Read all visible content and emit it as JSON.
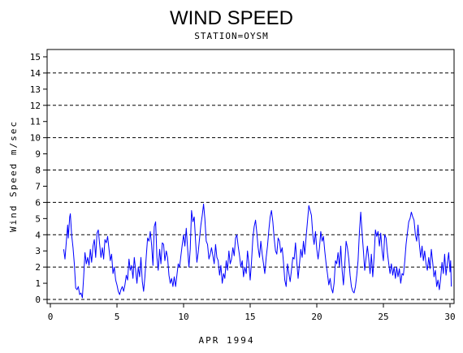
{
  "chart_data": {
    "type": "line",
    "title": "WIND SPEED",
    "subtitle": "STATION=OYSM",
    "xlabel": "APR 1994",
    "ylabel": "Wind Speed m/sec",
    "xlim": [
      0,
      30.3
    ],
    "ylim": [
      0,
      15.5
    ],
    "x_ticks": [
      0,
      5,
      10,
      15,
      20,
      25,
      30
    ],
    "y_ticks": [
      0,
      1,
      2,
      3,
      4,
      5,
      6,
      7,
      8,
      9,
      10,
      11,
      12,
      13,
      14,
      15
    ],
    "grid_lines_y": [
      0,
      2,
      4,
      6,
      8,
      10,
      12,
      14
    ],
    "grid_style": "dashed",
    "series_color": "#0000ff",
    "series": [
      {
        "values": [
          [
            1.0,
            3.1
          ],
          [
            1.1,
            2.5
          ],
          [
            1.2,
            3.6
          ],
          [
            1.3,
            4.6
          ],
          [
            1.35,
            3.8
          ],
          [
            1.45,
            5.1
          ],
          [
            1.5,
            5.3
          ],
          [
            1.6,
            4.0
          ],
          [
            1.7,
            3.2
          ],
          [
            1.8,
            2.2
          ],
          [
            1.9,
            0.7
          ],
          [
            2.0,
            0.6
          ],
          [
            2.1,
            0.8
          ],
          [
            2.2,
            0.3
          ],
          [
            2.3,
            0.4
          ],
          [
            2.4,
            0.1
          ],
          [
            2.5,
            1.4
          ],
          [
            2.6,
            2.9
          ],
          [
            2.7,
            2.2
          ],
          [
            2.8,
            2.6
          ],
          [
            2.9,
            2.1
          ],
          [
            3.0,
            3.1
          ],
          [
            3.1,
            2.3
          ],
          [
            3.2,
            3.3
          ],
          [
            3.3,
            3.7
          ],
          [
            3.4,
            2.6
          ],
          [
            3.5,
            4.1
          ],
          [
            3.6,
            4.3
          ],
          [
            3.7,
            3.4
          ],
          [
            3.8,
            2.6
          ],
          [
            3.9,
            3.2
          ],
          [
            4.0,
            2.5
          ],
          [
            4.1,
            3.7
          ],
          [
            4.2,
            3.5
          ],
          [
            4.3,
            3.9
          ],
          [
            4.4,
            3.1
          ],
          [
            4.5,
            2.4
          ],
          [
            4.6,
            2.8
          ],
          [
            4.7,
            1.6
          ],
          [
            4.8,
            2.0
          ],
          [
            4.9,
            1.2
          ],
          [
            5.0,
            0.9
          ],
          [
            5.1,
            0.5
          ],
          [
            5.2,
            0.3
          ],
          [
            5.3,
            0.6
          ],
          [
            5.4,
            0.8
          ],
          [
            5.5,
            0.5
          ],
          [
            5.6,
            0.9
          ],
          [
            5.7,
            1.5
          ],
          [
            5.8,
            1.2
          ],
          [
            5.9,
            2.5
          ],
          [
            6.0,
            1.8
          ],
          [
            6.1,
            2.1
          ],
          [
            6.2,
            1.3
          ],
          [
            6.3,
            2.6
          ],
          [
            6.4,
            1.8
          ],
          [
            6.5,
            1.0
          ],
          [
            6.6,
            2.0
          ],
          [
            6.7,
            1.4
          ],
          [
            6.8,
            2.6
          ],
          [
            6.9,
            1.1
          ],
          [
            7.0,
            0.5
          ],
          [
            7.1,
            1.4
          ],
          [
            7.2,
            2.7
          ],
          [
            7.3,
            3.8
          ],
          [
            7.4,
            3.6
          ],
          [
            7.5,
            4.2
          ],
          [
            7.6,
            3.4
          ],
          [
            7.7,
            2.1
          ],
          [
            7.8,
            4.5
          ],
          [
            7.9,
            4.8
          ],
          [
            8.0,
            2.6
          ],
          [
            8.1,
            1.8
          ],
          [
            8.2,
            3.1
          ],
          [
            8.3,
            2.2
          ],
          [
            8.4,
            3.5
          ],
          [
            8.5,
            3.4
          ],
          [
            8.6,
            2.4
          ],
          [
            8.7,
            3.0
          ],
          [
            8.8,
            2.6
          ],
          [
            8.9,
            1.5
          ],
          [
            9.0,
            1.0
          ],
          [
            9.1,
            1.3
          ],
          [
            9.2,
            0.8
          ],
          [
            9.3,
            1.4
          ],
          [
            9.4,
            0.8
          ],
          [
            9.5,
            1.5
          ],
          [
            9.6,
            2.2
          ],
          [
            9.7,
            2.0
          ],
          [
            9.8,
            2.7
          ],
          [
            9.9,
            3.4
          ],
          [
            10.0,
            4.0
          ],
          [
            10.1,
            3.3
          ],
          [
            10.2,
            4.4
          ],
          [
            10.3,
            3.2
          ],
          [
            10.4,
            2.0
          ],
          [
            10.5,
            3.1
          ],
          [
            10.6,
            5.5
          ],
          [
            10.7,
            4.8
          ],
          [
            10.8,
            5.1
          ],
          [
            10.9,
            3.6
          ],
          [
            11.0,
            2.3
          ],
          [
            11.1,
            2.9
          ],
          [
            11.2,
            3.8
          ],
          [
            11.3,
            4.6
          ],
          [
            11.4,
            5.2
          ],
          [
            11.5,
            5.9
          ],
          [
            11.6,
            5.0
          ],
          [
            11.7,
            3.6
          ],
          [
            11.8,
            3.4
          ],
          [
            11.9,
            2.5
          ],
          [
            12.0,
            2.8
          ],
          [
            12.1,
            3.2
          ],
          [
            12.2,
            2.7
          ],
          [
            12.3,
            2.2
          ],
          [
            12.4,
            3.4
          ],
          [
            12.5,
            2.6
          ],
          [
            12.6,
            2.4
          ],
          [
            12.7,
            1.5
          ],
          [
            12.8,
            2.1
          ],
          [
            12.9,
            1.0
          ],
          [
            13.0,
            1.6
          ],
          [
            13.1,
            1.3
          ],
          [
            13.2,
            2.4
          ],
          [
            13.3,
            1.8
          ],
          [
            13.4,
            3.0
          ],
          [
            13.5,
            2.2
          ],
          [
            13.6,
            2.5
          ],
          [
            13.7,
            3.2
          ],
          [
            13.8,
            2.7
          ],
          [
            13.9,
            3.8
          ],
          [
            14.0,
            4.0
          ],
          [
            14.1,
            3.3
          ],
          [
            14.2,
            2.7
          ],
          [
            14.3,
            2.0
          ],
          [
            14.4,
            2.4
          ],
          [
            14.5,
            1.4
          ],
          [
            14.6,
            2.0
          ],
          [
            14.7,
            1.6
          ],
          [
            14.8,
            3.0
          ],
          [
            14.9,
            2.2
          ],
          [
            15.0,
            1.2
          ],
          [
            15.1,
            2.3
          ],
          [
            15.2,
            3.8
          ],
          [
            15.3,
            4.5
          ],
          [
            15.4,
            4.9
          ],
          [
            15.5,
            4.1
          ],
          [
            15.6,
            3.2
          ],
          [
            15.7,
            2.6
          ],
          [
            15.8,
            3.6
          ],
          [
            15.9,
            2.8
          ],
          [
            16.0,
            2.2
          ],
          [
            16.1,
            1.6
          ],
          [
            16.2,
            2.6
          ],
          [
            16.3,
            3.3
          ],
          [
            16.4,
            4.3
          ],
          [
            16.5,
            5.1
          ],
          [
            16.6,
            5.5
          ],
          [
            16.7,
            4.8
          ],
          [
            16.8,
            3.8
          ],
          [
            16.9,
            3.0
          ],
          [
            17.0,
            2.8
          ],
          [
            17.1,
            3.8
          ],
          [
            17.2,
            3.6
          ],
          [
            17.3,
            2.9
          ],
          [
            17.4,
            3.2
          ],
          [
            17.5,
            2.3
          ],
          [
            17.6,
            1.2
          ],
          [
            17.7,
            0.8
          ],
          [
            17.8,
            2.2
          ],
          [
            17.9,
            1.6
          ],
          [
            18.0,
            1.1
          ],
          [
            18.1,
            1.8
          ],
          [
            18.2,
            2.6
          ],
          [
            18.3,
            2.5
          ],
          [
            18.4,
            3.5
          ],
          [
            18.5,
            2.3
          ],
          [
            18.6,
            1.3
          ],
          [
            18.7,
            2.2
          ],
          [
            18.8,
            3.1
          ],
          [
            18.9,
            2.6
          ],
          [
            19.0,
            3.6
          ],
          [
            19.1,
            2.8
          ],
          [
            19.2,
            3.9
          ],
          [
            19.3,
            4.8
          ],
          [
            19.4,
            5.8
          ],
          [
            19.5,
            5.5
          ],
          [
            19.6,
            5.2
          ],
          [
            19.7,
            4.0
          ],
          [
            19.8,
            3.4
          ],
          [
            19.9,
            4.2
          ],
          [
            20.0,
            3.1
          ],
          [
            20.1,
            2.5
          ],
          [
            20.2,
            3.2
          ],
          [
            20.3,
            4.2
          ],
          [
            20.4,
            3.6
          ],
          [
            20.5,
            3.9
          ],
          [
            20.6,
            3.0
          ],
          [
            20.7,
            2.2
          ],
          [
            20.8,
            1.6
          ],
          [
            20.9,
            0.9
          ],
          [
            21.0,
            1.3
          ],
          [
            21.1,
            0.7
          ],
          [
            21.2,
            0.4
          ],
          [
            21.3,
            1.0
          ],
          [
            21.4,
            2.4
          ],
          [
            21.5,
            2.2
          ],
          [
            21.6,
            2.9
          ],
          [
            21.7,
            2.0
          ],
          [
            21.8,
            3.3
          ],
          [
            21.9,
            1.8
          ],
          [
            22.0,
            0.9
          ],
          [
            22.1,
            2.1
          ],
          [
            22.2,
            3.6
          ],
          [
            22.3,
            3.2
          ],
          [
            22.4,
            2.5
          ],
          [
            22.5,
            1.5
          ],
          [
            22.6,
            0.8
          ],
          [
            22.7,
            0.5
          ],
          [
            22.8,
            0.4
          ],
          [
            22.9,
            0.8
          ],
          [
            23.0,
            1.5
          ],
          [
            23.1,
            2.4
          ],
          [
            23.2,
            4.2
          ],
          [
            23.3,
            5.4
          ],
          [
            23.4,
            4.1
          ],
          [
            23.5,
            3.0
          ],
          [
            23.6,
            1.8
          ],
          [
            23.7,
            2.6
          ],
          [
            23.8,
            3.3
          ],
          [
            23.9,
            2.5
          ],
          [
            24.0,
            1.6
          ],
          [
            24.1,
            2.8
          ],
          [
            24.2,
            1.4
          ],
          [
            24.3,
            2.6
          ],
          [
            24.4,
            4.3
          ],
          [
            24.5,
            3.9
          ],
          [
            24.6,
            4.2
          ],
          [
            24.7,
            3.3
          ],
          [
            24.8,
            4.1
          ],
          [
            24.9,
            3.0
          ],
          [
            25.0,
            2.4
          ],
          [
            25.1,
            4.0
          ],
          [
            25.2,
            3.8
          ],
          [
            25.3,
            2.9
          ],
          [
            25.4,
            2.2
          ],
          [
            25.5,
            1.6
          ],
          [
            25.6,
            2.2
          ],
          [
            25.7,
            1.5
          ],
          [
            25.8,
            2.0
          ],
          [
            25.9,
            1.3
          ],
          [
            26.0,
            2.0
          ],
          [
            26.1,
            1.4
          ],
          [
            26.2,
            1.9
          ],
          [
            26.3,
            1.0
          ],
          [
            26.4,
            1.6
          ],
          [
            26.5,
            1.5
          ],
          [
            26.6,
            2.3
          ],
          [
            26.7,
            3.4
          ],
          [
            26.8,
            4.1
          ],
          [
            26.9,
            4.8
          ],
          [
            27.0,
            5.0
          ],
          [
            27.1,
            5.4
          ],
          [
            27.2,
            5.1
          ],
          [
            27.3,
            4.9
          ],
          [
            27.4,
            4.0
          ],
          [
            27.5,
            3.6
          ],
          [
            27.6,
            4.6
          ],
          [
            27.7,
            3.4
          ],
          [
            27.8,
            2.6
          ],
          [
            27.9,
            3.3
          ],
          [
            28.0,
            2.4
          ],
          [
            28.1,
            3.0
          ],
          [
            28.2,
            2.2
          ],
          [
            28.3,
            1.8
          ],
          [
            28.4,
            2.6
          ],
          [
            28.5,
            1.9
          ],
          [
            28.6,
            3.1
          ],
          [
            28.7,
            2.3
          ],
          [
            28.8,
            1.4
          ],
          [
            28.9,
            1.8
          ],
          [
            29.0,
            0.8
          ],
          [
            29.1,
            1.2
          ],
          [
            29.2,
            0.6
          ],
          [
            29.3,
            1.3
          ],
          [
            29.4,
            2.3
          ],
          [
            29.5,
            1.6
          ],
          [
            29.6,
            2.8
          ],
          [
            29.7,
            1.5
          ],
          [
            29.8,
            2.2
          ],
          [
            29.9,
            2.9
          ],
          [
            30.0,
            1.7
          ],
          [
            30.05,
            2.4
          ],
          [
            30.1,
            0.8
          ]
        ]
      }
    ]
  }
}
